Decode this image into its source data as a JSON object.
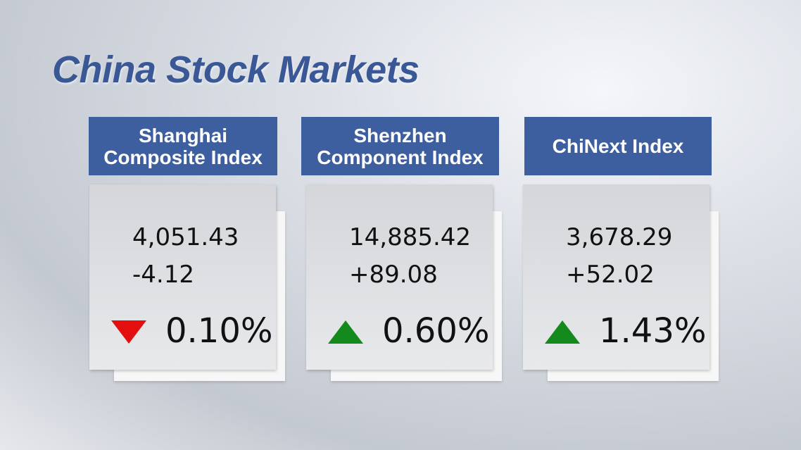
{
  "title": "China Stock Markets",
  "cards": [
    {
      "name": [
        "Shanghai",
        "Composite Index"
      ],
      "value": "4,051.43",
      "change": "-4.12",
      "percent": "0.10%",
      "direction": "down",
      "arrow_color": "#e30f0f"
    },
    {
      "name": [
        "Shenzhen",
        "Component Index"
      ],
      "value": "14,885.42",
      "change": "+89.08",
      "percent": "0.60%",
      "direction": "up",
      "arrow_color": "#158a1c"
    },
    {
      "name": [
        "ChiNext Index"
      ],
      "value": "3,678.29",
      "change": "+52.02",
      "percent": "1.43%",
      "direction": "up",
      "arrow_color": "#158a1c"
    }
  ]
}
